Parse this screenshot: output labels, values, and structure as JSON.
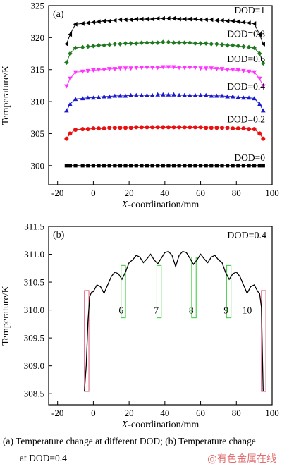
{
  "chart_data": [
    {
      "type": "line",
      "panel_label": "(a)",
      "xlabel_prefix": "X",
      "xlabel_rest": "-coordination/mm",
      "ylabel": "Temperature/K",
      "xlim": [
        -25,
        100
      ],
      "ylim": [
        297,
        325
      ],
      "xticks": [
        -20,
        0,
        20,
        40,
        60,
        80,
        100
      ],
      "yticks": [
        300,
        305,
        310,
        315,
        320,
        325
      ],
      "x": [
        -15,
        -13,
        -10,
        -6,
        -3,
        0,
        3,
        6,
        9,
        12,
        15,
        18,
        21,
        24,
        27,
        30,
        33,
        36,
        39,
        42,
        45,
        48,
        51,
        54,
        57,
        60,
        63,
        66,
        69,
        72,
        75,
        78,
        81,
        84,
        87,
        90,
        93,
        95
      ],
      "series": [
        {
          "name": "DOD=1",
          "color": "#000000",
          "marker": "tri-left",
          "values": [
            319.0,
            320.5,
            322.1,
            322.2,
            322.3,
            322.4,
            322.5,
            322.6,
            322.6,
            322.7,
            322.8,
            322.8,
            322.8,
            322.9,
            322.9,
            322.9,
            322.9,
            323.0,
            323.0,
            323.0,
            323.0,
            322.9,
            322.9,
            322.9,
            322.9,
            322.8,
            322.8,
            322.8,
            322.7,
            322.7,
            322.6,
            322.6,
            322.5,
            322.4,
            322.3,
            322.2,
            320.5,
            319.0
          ]
        },
        {
          "name": "DOD=0.8",
          "color": "#1f7a1f",
          "marker": "diamond",
          "values": [
            316.1,
            317.5,
            318.4,
            318.5,
            318.6,
            318.7,
            318.8,
            318.8,
            318.9,
            319.0,
            319.0,
            319.1,
            319.1,
            319.1,
            319.2,
            319.2,
            319.2,
            319.2,
            319.3,
            319.3,
            319.2,
            319.2,
            319.2,
            319.2,
            319.1,
            319.1,
            319.1,
            319.0,
            319.0,
            318.9,
            318.8,
            318.8,
            318.7,
            318.6,
            318.5,
            318.4,
            317.5,
            316.0
          ]
        },
        {
          "name": "DOD=0.6",
          "color": "#ff33ff",
          "marker": "tri-down",
          "values": [
            312.4,
            313.6,
            314.6,
            314.7,
            314.8,
            314.9,
            315.0,
            315.0,
            315.1,
            315.1,
            315.2,
            315.2,
            315.2,
            315.3,
            315.3,
            315.3,
            315.3,
            315.3,
            315.4,
            315.4,
            315.4,
            315.3,
            315.3,
            315.3,
            315.3,
            315.2,
            315.2,
            315.2,
            315.1,
            315.1,
            315.0,
            315.0,
            314.9,
            314.8,
            314.7,
            314.6,
            313.6,
            312.4
          ]
        },
        {
          "name": "DOD=0.4",
          "color": "#1a1acc",
          "marker": "tri-up",
          "values": [
            308.6,
            309.6,
            310.4,
            310.5,
            310.6,
            310.6,
            310.7,
            310.8,
            310.8,
            310.9,
            310.9,
            310.9,
            311.0,
            311.0,
            311.0,
            311.0,
            311.0,
            311.1,
            311.1,
            311.1,
            311.1,
            311.0,
            311.0,
            311.0,
            311.0,
            311.0,
            311.0,
            310.9,
            310.9,
            310.9,
            310.8,
            310.8,
            310.7,
            310.6,
            310.6,
            310.5,
            309.6,
            308.6
          ]
        },
        {
          "name": "DOD=0.2",
          "color": "#e81010",
          "marker": "circle",
          "values": [
            304.2,
            305.0,
            305.6,
            305.7,
            305.7,
            305.8,
            305.8,
            305.8,
            305.9,
            305.9,
            305.9,
            305.9,
            305.9,
            306.0,
            306.0,
            306.0,
            306.0,
            306.0,
            306.0,
            306.0,
            306.0,
            306.0,
            306.0,
            306.0,
            306.0,
            306.0,
            305.9,
            305.9,
            305.9,
            305.9,
            305.9,
            305.8,
            305.8,
            305.8,
            305.7,
            305.7,
            305.0,
            304.2
          ]
        },
        {
          "name": "DOD=0",
          "color": "#000000",
          "marker": "square",
          "values": [
            300,
            300,
            300,
            300,
            300,
            300,
            300,
            300,
            300,
            300,
            300,
            300,
            300,
            300,
            300,
            300,
            300,
            300,
            300,
            300,
            300,
            300,
            300,
            300,
            300,
            300,
            300,
            300,
            300,
            300,
            300,
            300,
            300,
            300,
            300,
            300,
            300,
            300
          ]
        }
      ]
    },
    {
      "type": "line",
      "panel_label": "(b)",
      "annotation": "DOD=0.4",
      "xlabel_prefix": "X",
      "xlabel_rest": "-coordination/mm",
      "ylabel": "Temperature/K",
      "xlim": [
        -25,
        100
      ],
      "ylim": [
        308.3,
        311.5
      ],
      "xticks": [
        -20,
        0,
        20,
        40,
        60,
        80,
        100
      ],
      "yticks": [
        308.5,
        309.0,
        309.5,
        310.0,
        310.5,
        311.0,
        311.5
      ],
      "curve": {
        "color": "#000000",
        "x": [
          -5,
          -4,
          -3,
          -2,
          -1,
          0,
          2,
          4,
          6,
          8,
          10,
          12,
          14,
          16,
          18,
          20,
          22,
          24,
          26,
          28,
          30,
          32,
          34,
          36,
          38,
          40,
          42,
          44,
          46,
          48,
          50,
          52,
          54,
          56,
          58,
          60,
          62,
          64,
          66,
          68,
          70,
          72,
          74,
          76,
          78,
          80,
          82,
          84,
          86,
          88,
          90,
          92,
          93,
          94,
          95
        ],
        "y": [
          308.54,
          309.0,
          309.8,
          310.25,
          310.32,
          310.33,
          310.45,
          310.42,
          310.3,
          310.45,
          310.6,
          310.68,
          310.65,
          310.55,
          310.68,
          310.85,
          310.9,
          310.98,
          310.95,
          310.85,
          310.92,
          311.0,
          310.9,
          310.83,
          310.93,
          311.03,
          311.05,
          310.98,
          310.78,
          310.98,
          311.05,
          311.03,
          310.93,
          310.82,
          310.9,
          311.0,
          310.92,
          310.85,
          310.95,
          310.98,
          310.9,
          310.85,
          310.67,
          310.55,
          310.65,
          310.68,
          310.6,
          310.45,
          310.3,
          310.42,
          310.45,
          310.33,
          310.3,
          310.05,
          308.54
        ]
      },
      "cells": [
        {
          "label": "",
          "x_range": [
            -5,
            -2.5
          ],
          "y_range": [
            308.54,
            310.35
          ],
          "color": "#e05a7a"
        },
        {
          "label": "6",
          "x_range": [
            15.5,
            18
          ],
          "y_range": [
            309.86,
            310.8
          ],
          "color": "#33cc33"
        },
        {
          "label": "7",
          "x_range": [
            35.5,
            38
          ],
          "y_range": [
            309.86,
            310.8
          ],
          "color": "#33cc33"
        },
        {
          "label": "8",
          "x_range": [
            55,
            57.5
          ],
          "y_range": [
            309.86,
            310.95
          ],
          "color": "#33cc33"
        },
        {
          "label": "9",
          "x_range": [
            74.5,
            77
          ],
          "y_range": [
            309.86,
            310.8
          ],
          "color": "#33cc33"
        },
        {
          "label": "10",
          "x_range": [
            94,
            96.5
          ],
          "y_range": [
            308.54,
            310.35
          ],
          "color": "#e05a7a"
        }
      ],
      "cell_label_y": 310.0
    }
  ],
  "caption": {
    "line1": "(a)  Temperature change at different DOD; (b)  Temperature change",
    "line2": "at DOD=0.4"
  },
  "watermark": "@有色金属在线"
}
